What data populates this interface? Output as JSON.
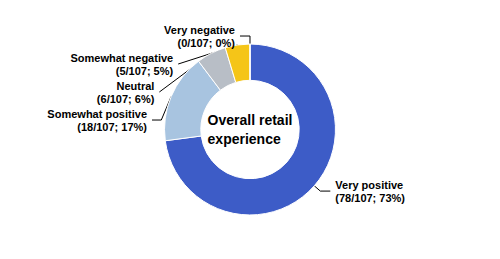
{
  "chart_data": {
    "type": "donut",
    "categories": [
      "Very positive\n(78/107; 73%)",
      "Somewhat positive\n(18/107; 17%)",
      "Neutral\n(6/107; 6%)",
      "Somewhat negative\n(5/107; 5%)",
      "Very negative\n(0/107; 0%)"
    ],
    "values": [
      78,
      18,
      6,
      5,
      0.001
    ],
    "colors": [
      "#3d5cc7",
      "#a8c4e0",
      "#b8bec6",
      "#f5c518",
      "#3d5cc7"
    ],
    "annotations": [
      "Overall retail\nexperience"
    ]
  }
}
